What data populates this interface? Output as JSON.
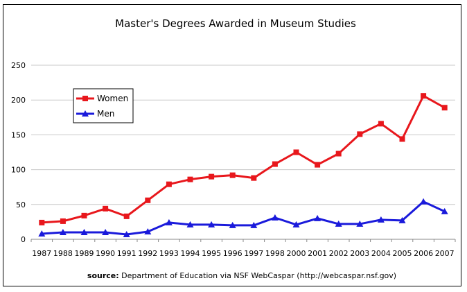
{
  "chart_data": {
    "type": "line",
    "title": "Master's Degrees Awarded in Museum Studies",
    "xlabel": "",
    "ylabel": "",
    "ylim": [
      0,
      250
    ],
    "yticks": [
      0,
      50,
      100,
      150,
      200,
      250
    ],
    "grid": true,
    "legend_position": "upper-left",
    "categories": [
      "1987",
      "1988",
      "1989",
      "1990",
      "1991",
      "1992",
      "1993",
      "1994",
      "1995",
      "1996",
      "1997",
      "1998",
      "2000",
      "2001",
      "2002",
      "2003",
      "2004",
      "2005",
      "2006",
      "2007"
    ],
    "series": [
      {
        "name": "Women",
        "color": "#e8171c",
        "marker": "square",
        "values": [
          24,
          26,
          34,
          44,
          33,
          56,
          79,
          86,
          90,
          92,
          88,
          108,
          125,
          107,
          123,
          151,
          166,
          144,
          206,
          189
        ]
      },
      {
        "name": "Men",
        "color": "#1a1adb",
        "marker": "triangle",
        "values": [
          8,
          10,
          10,
          10,
          7,
          11,
          24,
          21,
          21,
          20,
          20,
          31,
          21,
          30,
          22,
          22,
          28,
          27,
          54,
          40
        ]
      }
    ]
  },
  "source": {
    "label": "source:",
    "text": " Department of Education via NSF WebCaspar (http://webcaspar.nsf.gov)"
  }
}
